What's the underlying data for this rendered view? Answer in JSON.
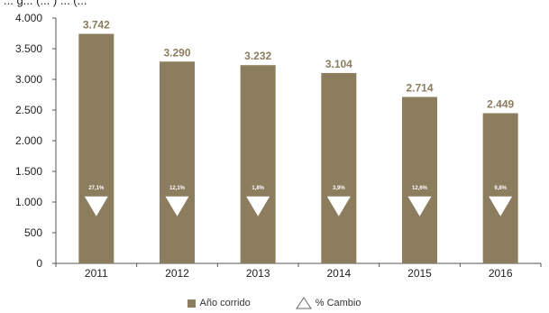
{
  "header_fragment": "... g... (... ) ... (...",
  "chart_data": {
    "type": "bar",
    "categories": [
      "2011",
      "2012",
      "2013",
      "2014",
      "2015",
      "2016"
    ],
    "series": [
      {
        "name": "Año corrido",
        "values": [
          3742,
          3290,
          3232,
          3104,
          2714,
          2449
        ]
      }
    ],
    "value_labels": [
      "3.742",
      "3.290",
      "3.232",
      "3.104",
      "2.714",
      "2.449"
    ],
    "change_series": {
      "name": "% Cambio",
      "labels": [
        "27,1%",
        "12,1%",
        "1,8%",
        "3,9%",
        "12,6%",
        "9,8%"
      ],
      "direction": "down"
    },
    "ylim": [
      0,
      4000
    ],
    "yticks": [
      0,
      500,
      1000,
      1500,
      2000,
      2500,
      3000,
      3500,
      4000
    ],
    "ytick_labels": [
      "0",
      "500",
      "1.000",
      "1.500",
      "2.000",
      "2.500",
      "3.000",
      "3.500",
      "4.000"
    ],
    "marker_level": 1150,
    "grid": false,
    "legend_position": "bottom",
    "colors": {
      "bar": "#8B7D5E",
      "value_label": "#8B7D5E",
      "marker": "#ffffff",
      "axis": "#555555"
    }
  }
}
